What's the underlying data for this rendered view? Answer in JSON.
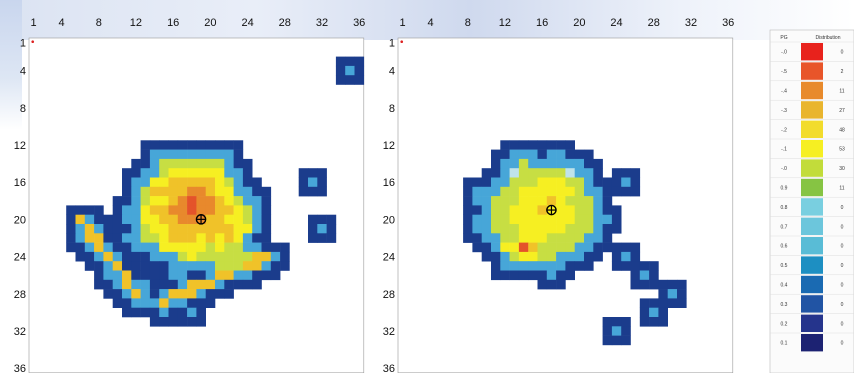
{
  "chart_data": [
    {
      "type": "heatmap",
      "name": "",
      "x_ticks": [
        "1",
        "4",
        "8",
        "12",
        "16",
        "20",
        "24",
        "28",
        "32",
        "36"
      ],
      "y_ticks": [
        "1",
        "4",
        "8",
        "12",
        "16",
        "20",
        "24",
        "28",
        "32",
        "36"
      ],
      "grid_size": 36,
      "cluster_center_row_col": [
        20,
        19
      ],
      "regions": [
        {
          "shape": "blob",
          "center": [
            19,
            18
          ],
          "radius": 7.0,
          "peak_level": 7
        },
        {
          "shape": "blob",
          "center": [
            17,
            15
          ],
          "radius": 3.5,
          "peak_level": 5
        },
        {
          "shape": "blob",
          "center": [
            21,
            22
          ],
          "radius": 3.5,
          "peak_level": 5
        },
        {
          "shape": "streak",
          "from": [
            20,
            6
          ],
          "to": [
            28,
            12
          ],
          "peak_level": 6
        },
        {
          "shape": "streak",
          "from": [
            29,
            15
          ],
          "to": [
            24,
            26
          ],
          "peak_level": 6
        },
        {
          "shape": "dot",
          "at": [
            4,
            35
          ],
          "peak_level": 2
        },
        {
          "shape": "dot",
          "at": [
            16,
            31
          ],
          "peak_level": 2
        },
        {
          "shape": "dot",
          "at": [
            21,
            32
          ],
          "peak_level": 2
        },
        {
          "shape": "dot",
          "at": [
            30,
            18
          ],
          "peak_level": 2
        }
      ]
    },
    {
      "type": "heatmap",
      "name": "",
      "x_ticks": [
        "1",
        "4",
        "8",
        "12",
        "16",
        "20",
        "24",
        "28",
        "32",
        "36"
      ],
      "y_ticks": [
        "1",
        "4",
        "8",
        "12",
        "16",
        "20",
        "24",
        "28",
        "32",
        "36"
      ],
      "grid_size": 36,
      "cluster_center_row_col": [
        19,
        17
      ],
      "regions": [
        {
          "shape": "blob",
          "center": [
            19,
            16
          ],
          "radius": 6.5,
          "peak_level": 5
        },
        {
          "shape": "blob",
          "center": [
            23,
            14
          ],
          "radius": 2.5,
          "peak_level": 6
        },
        {
          "shape": "dot",
          "at": [
            16,
            25
          ],
          "peak_level": 2
        },
        {
          "shape": "dot",
          "at": [
            24,
            25
          ],
          "peak_level": 2
        },
        {
          "shape": "dot",
          "at": [
            26,
            27
          ],
          "peak_level": 2
        },
        {
          "shape": "dot",
          "at": [
            28,
            30
          ],
          "peak_level": 2
        },
        {
          "shape": "dot",
          "at": [
            30,
            28
          ],
          "peak_level": 2
        },
        {
          "shape": "dot",
          "at": [
            32,
            24
          ],
          "peak_level": 2
        }
      ]
    }
  ],
  "legend": {
    "header": [
      "PG",
      "Distribution"
    ],
    "rows": [
      {
        "label": "-.0",
        "value": "0",
        "color": "#e8221c"
      },
      {
        "label": "-.5",
        "value": "2",
        "color": "#e8552a"
      },
      {
        "label": "-.4",
        "value": "11",
        "color": "#e88a2c"
      },
      {
        "label": "-.3",
        "value": "27",
        "color": "#e9b52e"
      },
      {
        "label": "-.2",
        "value": "48",
        "color": "#f2dc2c"
      },
      {
        "label": "-.1",
        "value": "53",
        "color": "#f6ef22"
      },
      {
        "label": "-.0",
        "value": "30",
        "color": "#c2dc3a"
      },
      {
        "label": "0.9",
        "value": "11",
        "color": "#86c443"
      },
      {
        "label": "0.8",
        "value": "0",
        "color": "#79cfe0"
      },
      {
        "label": "0.7",
        "value": "0",
        "color": "#6cc6dc"
      },
      {
        "label": "0.6",
        "value": "0",
        "color": "#59bcd6"
      },
      {
        "label": "0.5",
        "value": "0",
        "color": "#1d8fc2"
      },
      {
        "label": "0.4",
        "value": "0",
        "color": "#1a6ab2"
      },
      {
        "label": "0.3",
        "value": "0",
        "color": "#2154a4"
      },
      {
        "label": "0.2",
        "value": "0",
        "color": "#25348c"
      },
      {
        "label": "0.1",
        "value": "0",
        "color": "#1c2272"
      }
    ]
  },
  "colors": {
    "outline": "#1b3c8c",
    "ring": "#47a6d8",
    "marker": "#000000",
    "origin_marker": "#dd2222"
  }
}
